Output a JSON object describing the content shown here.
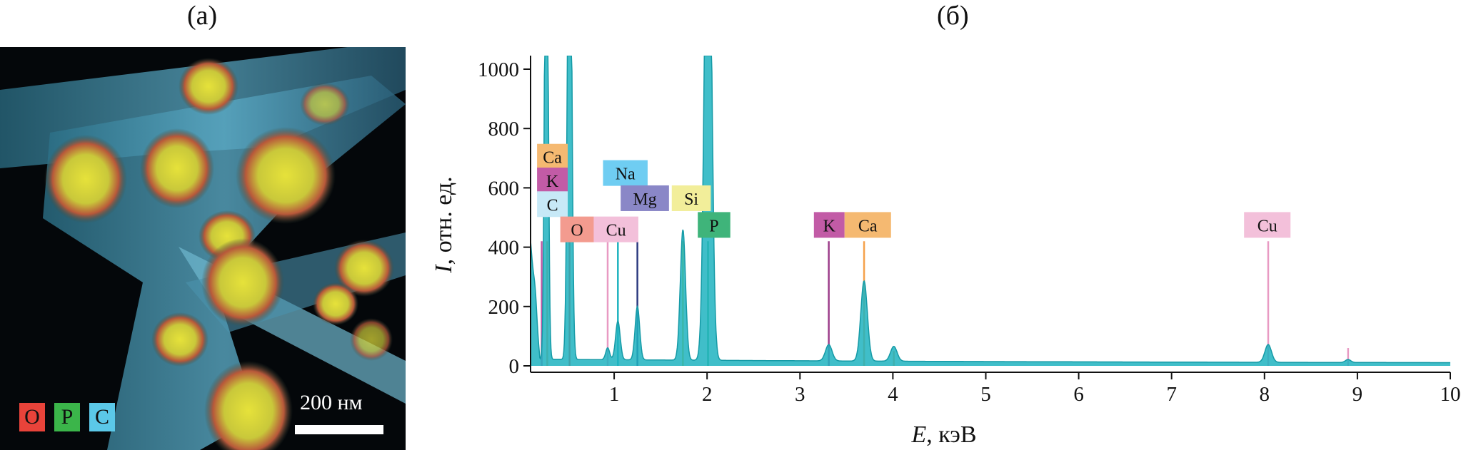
{
  "panels": {
    "a": {
      "label": "(а)",
      "legend": [
        {
          "symbol": "O",
          "color": "#e8433a"
        },
        {
          "symbol": "P",
          "color": "#3bb54a"
        },
        {
          "symbol": "C",
          "color": "#5bc8e8"
        }
      ],
      "scale_bar_label": "200 нм"
    },
    "b": {
      "label": "(б)"
    }
  },
  "chart_data": {
    "type": "line",
    "xlabel_var": "E",
    "xlabel_unit": ", кэВ",
    "ylabel_var": "I",
    "ylabel_unit": ", отн. ед.",
    "xlim": [
      0.1,
      10
    ],
    "ylim": [
      0,
      1050
    ],
    "xticks": [
      "1",
      "2",
      "3",
      "4",
      "5",
      "6",
      "7",
      "8",
      "9",
      "10"
    ],
    "yticks": [
      "0",
      "200",
      "400",
      "600",
      "800",
      "1000"
    ],
    "series_color": "#1fb3bf",
    "peaks": [
      {
        "x": 0.15,
        "y": 40,
        "w": 0.02
      },
      {
        "x": 0.27,
        "y": 2000,
        "w": 0.025
      },
      {
        "x": 0.52,
        "y": 2000,
        "w": 0.03
      },
      {
        "x": 0.93,
        "y": 40,
        "w": 0.03
      },
      {
        "x": 1.04,
        "y": 130,
        "w": 0.035
      },
      {
        "x": 1.25,
        "y": 180,
        "w": 0.035
      },
      {
        "x": 1.74,
        "y": 440,
        "w": 0.04
      },
      {
        "x": 2.01,
        "y": 2000,
        "w": 0.05
      },
      {
        "x": 3.31,
        "y": 55,
        "w": 0.05
      },
      {
        "x": 3.69,
        "y": 270,
        "w": 0.05
      },
      {
        "x": 4.01,
        "y": 50,
        "w": 0.05
      },
      {
        "x": 8.04,
        "y": 60,
        "w": 0.05
      },
      {
        "x": 8.9,
        "y": 10,
        "w": 0.04
      }
    ],
    "background": 15,
    "element_labels": [
      {
        "text": "Ca",
        "x": 0.17,
        "level": 705,
        "color": "#f5b971",
        "width": 0.33
      },
      {
        "text": "K",
        "x": 0.17,
        "level": 625,
        "color": "#c25ba6",
        "width": 0.33
      },
      {
        "text": "C",
        "x": 0.17,
        "level": 545,
        "color": "#c7e9f7",
        "width": 0.33
      },
      {
        "text": "O",
        "x": 0.42,
        "level": 460,
        "color": "#f39b8f",
        "width": 0.36
      },
      {
        "text": "Cu",
        "x": 0.78,
        "level": 460,
        "color": "#f3c0da",
        "width": 0.48
      },
      {
        "text": "Na",
        "x": 0.88,
        "level": 650,
        "color": "#6fcdf2",
        "width": 0.48
      },
      {
        "text": "Mg",
        "x": 1.07,
        "level": 565,
        "color": "#8a87c7",
        "width": 0.52
      },
      {
        "text": "Si",
        "x": 1.62,
        "level": 565,
        "color": "#f2ee9a",
        "width": 0.42
      },
      {
        "text": "P",
        "x": 1.9,
        "level": 475,
        "color": "#3fb47a",
        "width": 0.35
      },
      {
        "text": "K",
        "x": 3.15,
        "level": 475,
        "color": "#c25ba6",
        "width": 0.33
      },
      {
        "text": "Ca",
        "x": 3.48,
        "level": 475,
        "color": "#f5b971",
        "width": 0.5
      },
      {
        "text": "Cu",
        "x": 7.78,
        "level": 475,
        "color": "#f3c0da",
        "width": 0.5
      }
    ],
    "element_lines": [
      {
        "x": 0.22,
        "top": 420,
        "color": "#c25ba6"
      },
      {
        "x": 0.28,
        "top": 420,
        "color": "#f5a14b"
      },
      {
        "x": 0.52,
        "top": 420,
        "color": "#e8433a"
      },
      {
        "x": 0.93,
        "top": 420,
        "color": "#e89ac3"
      },
      {
        "x": 1.04,
        "top": 420,
        "color": "#1fb3bf"
      },
      {
        "x": 1.25,
        "top": 420,
        "color": "#2c3a80"
      },
      {
        "x": 1.74,
        "top": 420,
        "color": "#d9c92a"
      },
      {
        "x": 2.01,
        "top": 420,
        "color": "#3fb47a"
      },
      {
        "x": 3.31,
        "top": 420,
        "color": "#9c3d8a"
      },
      {
        "x": 3.69,
        "top": 420,
        "color": "#f5a14b"
      },
      {
        "x": 4.01,
        "top": 50,
        "color": "#f5a14b"
      },
      {
        "x": 8.04,
        "top": 420,
        "color": "#e89ac3"
      },
      {
        "x": 8.9,
        "top": 60,
        "color": "#e89ac3"
      }
    ]
  }
}
